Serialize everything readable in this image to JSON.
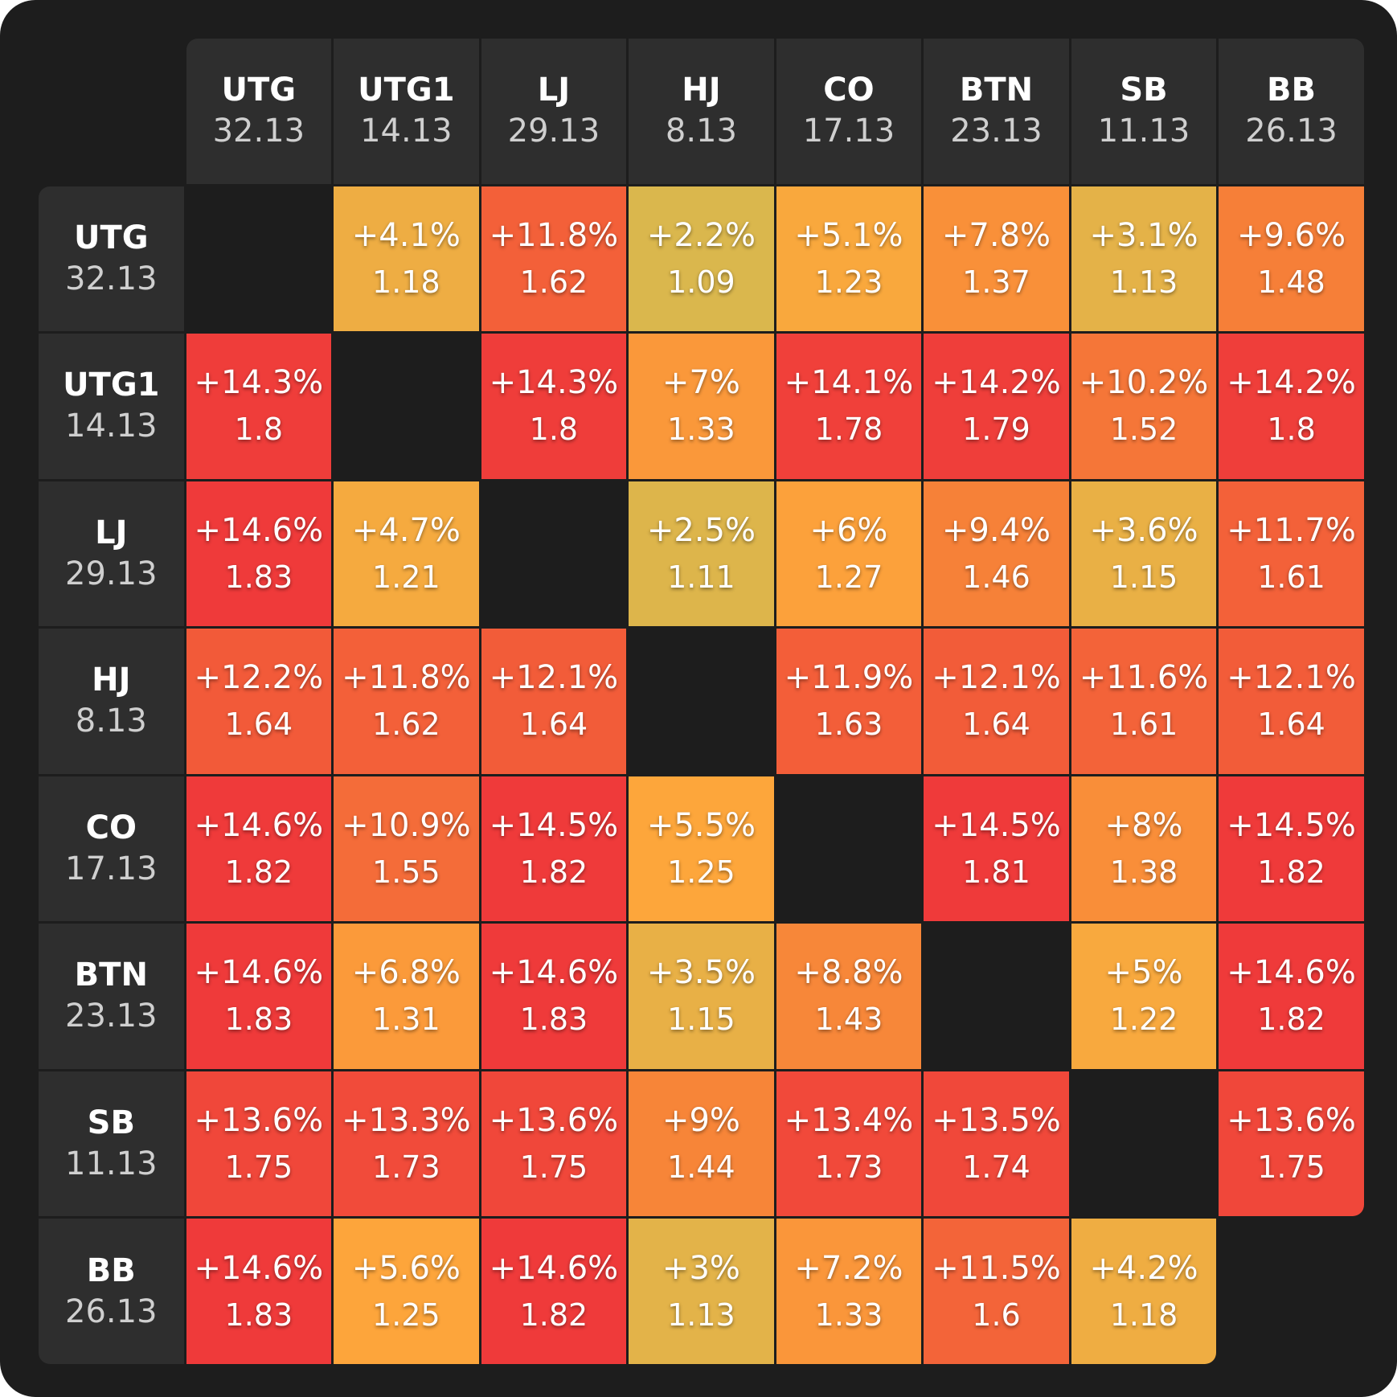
{
  "chart_data": {
    "type": "heatmap",
    "title": "",
    "xlabel": "",
    "ylabel": "",
    "positions": [
      {
        "name": "UTG",
        "value": "32.13"
      },
      {
        "name": "UTG1",
        "value": "14.13"
      },
      {
        "name": "LJ",
        "value": "29.13"
      },
      {
        "name": "HJ",
        "value": "8.13"
      },
      {
        "name": "CO",
        "value": "17.13"
      },
      {
        "name": "BTN",
        "value": "23.13"
      },
      {
        "name": "SB",
        "value": "11.13"
      },
      {
        "name": "BB",
        "value": "26.13"
      }
    ],
    "cells": [
      [
        null,
        {
          "pct": "+4.1%",
          "mult": "1.18"
        },
        {
          "pct": "+11.8%",
          "mult": "1.62"
        },
        {
          "pct": "+2.2%",
          "mult": "1.09"
        },
        {
          "pct": "+5.1%",
          "mult": "1.23"
        },
        {
          "pct": "+7.8%",
          "mult": "1.37"
        },
        {
          "pct": "+3.1%",
          "mult": "1.13"
        },
        {
          "pct": "+9.6%",
          "mult": "1.48"
        }
      ],
      [
        {
          "pct": "+14.3%",
          "mult": "1.8"
        },
        null,
        {
          "pct": "+14.3%",
          "mult": "1.8"
        },
        {
          "pct": "+7%",
          "mult": "1.33"
        },
        {
          "pct": "+14.1%",
          "mult": "1.78"
        },
        {
          "pct": "+14.2%",
          "mult": "1.79"
        },
        {
          "pct": "+10.2%",
          "mult": "1.52"
        },
        {
          "pct": "+14.2%",
          "mult": "1.8"
        }
      ],
      [
        {
          "pct": "+14.6%",
          "mult": "1.83"
        },
        {
          "pct": "+4.7%",
          "mult": "1.21"
        },
        null,
        {
          "pct": "+2.5%",
          "mult": "1.11"
        },
        {
          "pct": "+6%",
          "mult": "1.27"
        },
        {
          "pct": "+9.4%",
          "mult": "1.46"
        },
        {
          "pct": "+3.6%",
          "mult": "1.15"
        },
        {
          "pct": "+11.7%",
          "mult": "1.61"
        }
      ],
      [
        {
          "pct": "+12.2%",
          "mult": "1.64"
        },
        {
          "pct": "+11.8%",
          "mult": "1.62"
        },
        {
          "pct": "+12.1%",
          "mult": "1.64"
        },
        null,
        {
          "pct": "+11.9%",
          "mult": "1.63"
        },
        {
          "pct": "+12.1%",
          "mult": "1.64"
        },
        {
          "pct": "+11.6%",
          "mult": "1.61"
        },
        {
          "pct": "+12.1%",
          "mult": "1.64"
        }
      ],
      [
        {
          "pct": "+14.6%",
          "mult": "1.82"
        },
        {
          "pct": "+10.9%",
          "mult": "1.55"
        },
        {
          "pct": "+14.5%",
          "mult": "1.82"
        },
        {
          "pct": "+5.5%",
          "mult": "1.25"
        },
        null,
        {
          "pct": "+14.5%",
          "mult": "1.81"
        },
        {
          "pct": "+8%",
          "mult": "1.38"
        },
        {
          "pct": "+14.5%",
          "mult": "1.82"
        }
      ],
      [
        {
          "pct": "+14.6%",
          "mult": "1.83"
        },
        {
          "pct": "+6.8%",
          "mult": "1.31"
        },
        {
          "pct": "+14.6%",
          "mult": "1.83"
        },
        {
          "pct": "+3.5%",
          "mult": "1.15"
        },
        {
          "pct": "+8.8%",
          "mult": "1.43"
        },
        null,
        {
          "pct": "+5%",
          "mult": "1.22"
        },
        {
          "pct": "+14.6%",
          "mult": "1.82"
        }
      ],
      [
        {
          "pct": "+13.6%",
          "mult": "1.75"
        },
        {
          "pct": "+13.3%",
          "mult": "1.73"
        },
        {
          "pct": "+13.6%",
          "mult": "1.75"
        },
        {
          "pct": "+9%",
          "mult": "1.44"
        },
        {
          "pct": "+13.4%",
          "mult": "1.73"
        },
        {
          "pct": "+13.5%",
          "mult": "1.74"
        },
        null,
        {
          "pct": "+13.6%",
          "mult": "1.75"
        }
      ],
      [
        {
          "pct": "+14.6%",
          "mult": "1.83"
        },
        {
          "pct": "+5.6%",
          "mult": "1.25"
        },
        {
          "pct": "+14.6%",
          "mult": "1.82"
        },
        {
          "pct": "+3%",
          "mult": "1.13"
        },
        {
          "pct": "+7.2%",
          "mult": "1.33"
        },
        {
          "pct": "+11.5%",
          "mult": "1.6"
        },
        {
          "pct": "+4.2%",
          "mult": "1.18"
        },
        null
      ]
    ],
    "colors": {
      "background": "#1d1d1d",
      "header": "#2e2e2e",
      "scale_low": "#d8b84e",
      "scale_mid": "#fda63b",
      "scale_high": "#ef3a3a"
    }
  }
}
